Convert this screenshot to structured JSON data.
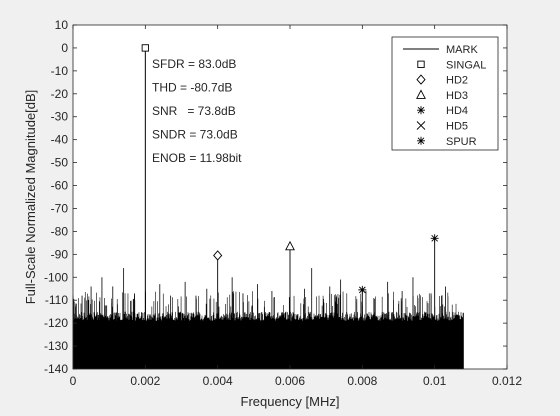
{
  "figure": {
    "background": "#f0f0f0"
  },
  "chart_data": {
    "type": "line",
    "xlabel": "Frequency [MHz]",
    "ylabel": "Full-Scale Normalized Magnitude[dB]",
    "xlim": [
      0,
      0.012
    ],
    "ylim": [
      -140,
      10
    ],
    "xticks": [
      "0",
      "0.002",
      "0.004",
      "0.006",
      "0.008",
      "0.01",
      "0.012"
    ],
    "xtick_values": [
      0,
      0.002,
      0.004,
      0.006,
      0.008,
      0.01,
      0.012
    ],
    "yticks": [
      "10",
      "0",
      "-10",
      "-20",
      "-30",
      "-40",
      "-50",
      "-60",
      "-70",
      "-80",
      "-90",
      "-100",
      "-110",
      "-120",
      "-130",
      "-140"
    ],
    "ytick_values": [
      10,
      0,
      -10,
      -20,
      -30,
      -40,
      -50,
      -60,
      -70,
      -80,
      -90,
      -100,
      -110,
      -120,
      -130,
      -140
    ],
    "grid": false,
    "legend_position": "top-right",
    "spectrum": {
      "x_range": [
        0,
        0.0108
      ],
      "noise_floor_band": [
        -140,
        -115
      ],
      "fundamental": {
        "x": 0.002,
        "y": 0
      },
      "spurs": [
        {
          "x": 0.00025,
          "y": -108
        },
        {
          "x": 0.0005,
          "y": -104
        },
        {
          "x": 0.0008,
          "y": -100
        },
        {
          "x": 0.0011,
          "y": -104
        },
        {
          "x": 0.0014,
          "y": -96
        },
        {
          "x": 0.0017,
          "y": -107
        },
        {
          "x": 0.0024,
          "y": -103
        },
        {
          "x": 0.0027,
          "y": -108
        },
        {
          "x": 0.0031,
          "y": -102
        },
        {
          "x": 0.0034,
          "y": -108
        },
        {
          "x": 0.0037,
          "y": -105
        },
        {
          "x": 0.0044,
          "y": -100
        },
        {
          "x": 0.0047,
          "y": -107
        },
        {
          "x": 0.0051,
          "y": -103
        },
        {
          "x": 0.0055,
          "y": -106
        },
        {
          "x": 0.0064,
          "y": -105
        },
        {
          "x": 0.0066,
          "y": -96
        },
        {
          "x": 0.0071,
          "y": -104
        },
        {
          "x": 0.0074,
          "y": -101
        },
        {
          "x": 0.0081,
          "y": -106
        },
        {
          "x": 0.0087,
          "y": -102
        },
        {
          "x": 0.0091,
          "y": -106
        },
        {
          "x": 0.0094,
          "y": -100
        },
        {
          "x": 0.0099,
          "y": -107
        },
        {
          "x": 0.0103,
          "y": -104
        }
      ]
    },
    "markers": [
      {
        "name": "SINGAL",
        "symbol": "square",
        "x": 0.002,
        "y": 0
      },
      {
        "name": "HD2",
        "symbol": "diamond",
        "x": 0.004,
        "y": -90.5
      },
      {
        "name": "HD3",
        "symbol": "triangle",
        "x": 0.006,
        "y": -86.5
      },
      {
        "name": "HD4",
        "symbol": "asterisk",
        "x": 0.008,
        "y": -105.5
      },
      {
        "name": "SPUR",
        "symbol": "asterisk",
        "x": 0.01,
        "y": -83.0
      }
    ],
    "annotations": [
      {
        "text": "SFDR = 83.0dB"
      },
      {
        "text": "THD = -80.7dB"
      },
      {
        "text": "SNR   = 73.8dB"
      },
      {
        "text": "SNDR = 73.0dB"
      },
      {
        "text": "ENOB = 11.98bit"
      }
    ],
    "legend": [
      {
        "label": "MARK",
        "symbol": "line"
      },
      {
        "label": "SINGAL",
        "symbol": "square"
      },
      {
        "label": "HD2",
        "symbol": "diamond"
      },
      {
        "label": "HD3",
        "symbol": "triangle"
      },
      {
        "label": "HD4",
        "symbol": "asterisk"
      },
      {
        "label": "HD5",
        "symbol": "cross"
      },
      {
        "label": "SPUR",
        "symbol": "asterisk"
      }
    ]
  }
}
